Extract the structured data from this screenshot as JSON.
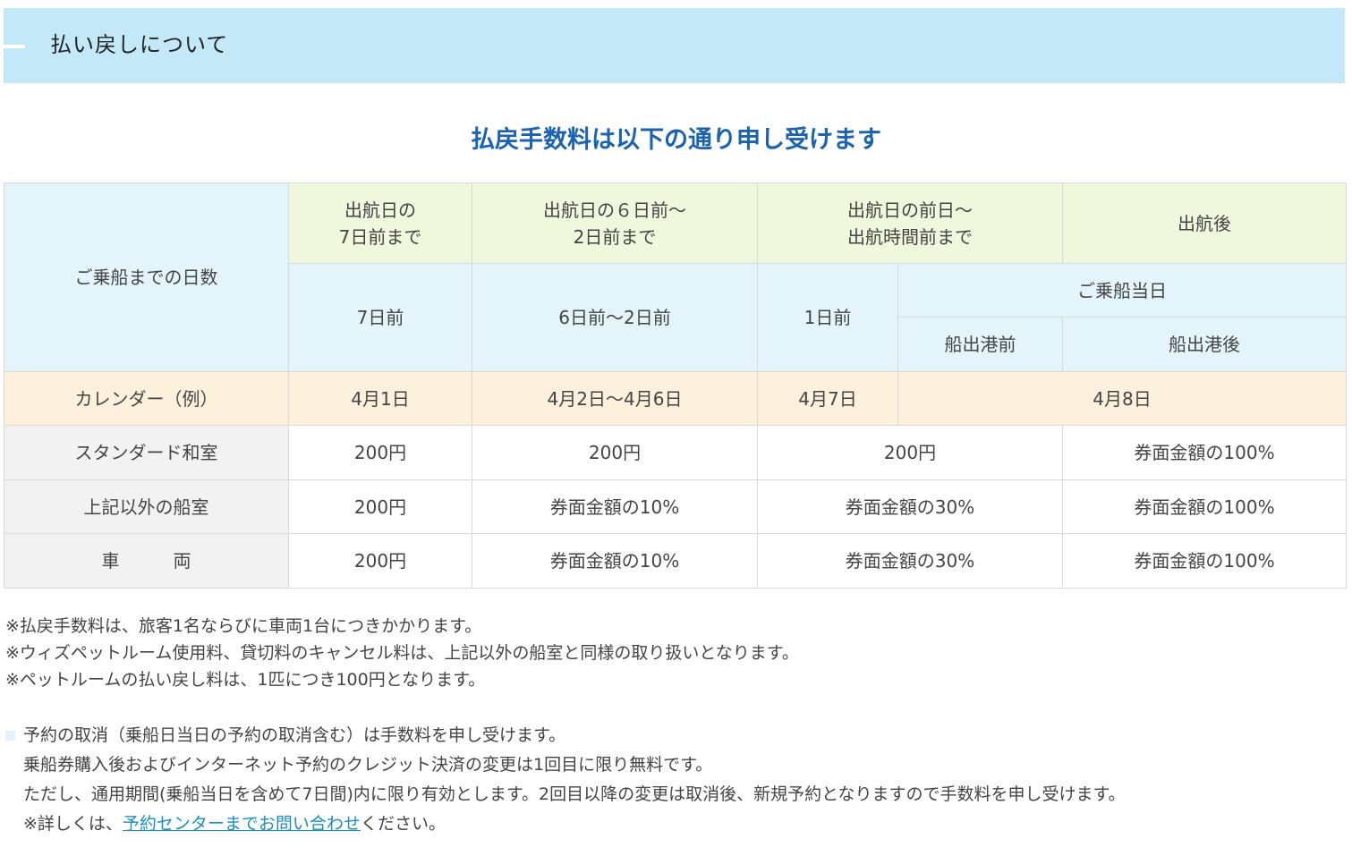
{
  "header": {
    "title": "払い戻しについて"
  },
  "heading": "払戻手数料は以下の通り申し受けます",
  "table": {
    "row_label_days": "ご乗船までの日数",
    "period_headers": [
      "出航日の\n7日前まで",
      "出航日の６日前～\n2日前まで",
      "出航日の前日～\n出航時間前まで",
      "出航後"
    ],
    "days": {
      "d7": "7日前",
      "d6_2": "6日前～2日前",
      "d1": "1日前",
      "same_day": "ご乗船当日",
      "before_departure": "船出港前",
      "after_departure": "船出港後"
    },
    "calendar": {
      "label": "カレンダー（例）",
      "d7": "4月1日",
      "d6_2": "4月2日～4月6日",
      "d1": "4月7日",
      "same_day": "4月8日"
    },
    "rows": [
      {
        "label": "スタンダード和室",
        "cells": [
          "200円",
          "200円",
          "200円",
          "券面金額の100%"
        ]
      },
      {
        "label": "上記以外の船室",
        "cells": [
          "200円",
          "券面金額の10%",
          "券面金額の30%",
          "券面金額の100%"
        ]
      },
      {
        "label": "車　　　両",
        "cells": [
          "200円",
          "券面金額の10%",
          "券面金額の30%",
          "券面金額の100%"
        ]
      }
    ]
  },
  "notes": [
    "※払戻手数料は、旅客1名ならびに車両1台につきかかります。",
    "※ウィズペットルーム使用料、貸切料のキャンセル料は、上記以外の船室と同様の取り扱いとなります。",
    "※ペットルームの払い戻し料は、1匹につき100円となります。"
  ],
  "bullet": {
    "lines": [
      "予約の取消（乗船日当日の予約の取消含む）は手数料を申し受けます。",
      "乗船券購入後およびインターネット予約のクレジット決済の変更は1回目に限り無料です。",
      "ただし、通用期間(乗船当日を含めて7日間)内に限り有効とします。2回目以降の変更は取消後、新規予約となりますので手数料を申し受けます。"
    ],
    "last_prefix": "※詳しくは、",
    "link_text": "予約センターまでお問い合わせ",
    "last_suffix": "ください。"
  },
  "colors": {
    "header_bg": "#c3e8f7",
    "heading": "#1b63b0",
    "period_bg": "#eff8dd",
    "days_bg": "#e3f4fb",
    "calendar_bg": "#fdf0dc",
    "row_label_bg": "#f2f2f2",
    "link": "#1a8fc0"
  }
}
